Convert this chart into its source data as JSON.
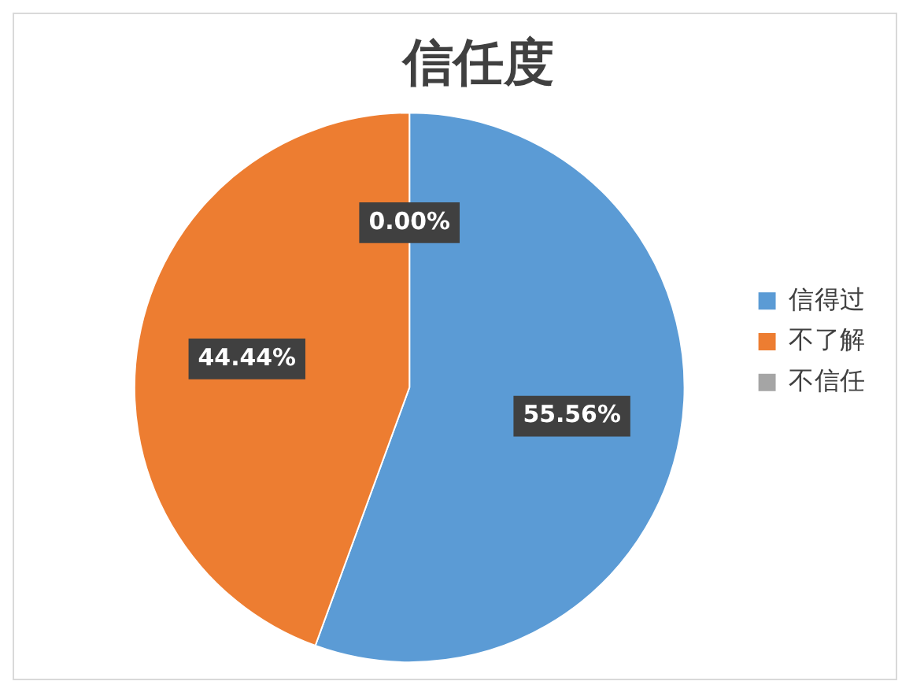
{
  "chart_data": {
    "type": "pie",
    "title": "信任度",
    "categories": [
      "信得过",
      "不了解",
      "不信任"
    ],
    "values": [
      55.56,
      44.44,
      0.0
    ],
    "colors": [
      "#5b9bd5",
      "#ed7d31",
      "#a5a5a5"
    ],
    "value_labels": [
      "55.56%",
      "44.44%",
      "0.00%"
    ],
    "legend": "right"
  }
}
